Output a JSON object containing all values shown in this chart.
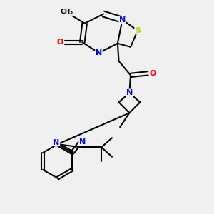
{
  "background_color": "#f0f0f0",
  "bond_color": "#000000",
  "atom_colors": {
    "N": "#0000ff",
    "O": "#ff0000",
    "S": "#cccc00"
  },
  "figsize": [
    3.0,
    3.0
  ],
  "dpi": 100
}
